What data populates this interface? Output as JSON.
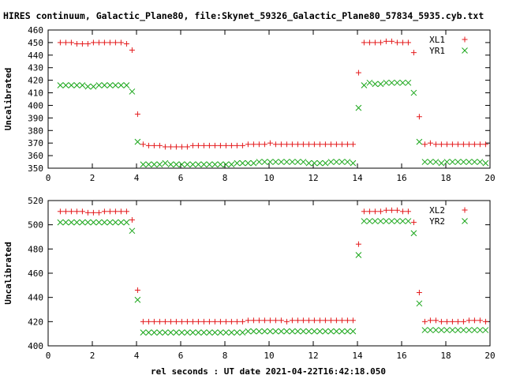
{
  "title": "HIRES continuum, Galactic_Plane80, file:Skynet_59326_Galactic_Plane80_57834_5935.cyb.txt",
  "xlabel": "rel seconds : UT date 2021-04-22T16:42:18.050",
  "colors": {
    "red": "#e41a1c",
    "green": "#1aa61a",
    "axes": "#000000"
  },
  "chart_data": [
    {
      "type": "scatter",
      "ylabel": "Uncalibrated",
      "xlim": [
        0,
        20
      ],
      "ylim": [
        350,
        460
      ],
      "xticks": [
        0,
        2,
        4,
        6,
        8,
        10,
        12,
        14,
        16,
        18,
        20
      ],
      "yticks": [
        350,
        360,
        370,
        380,
        390,
        400,
        410,
        420,
        430,
        440,
        450,
        460
      ],
      "grid": false,
      "legend": "top-right",
      "series": [
        {
          "name": "XL1",
          "marker": "plus",
          "color": "#e41a1c",
          "x": [
            0.55,
            0.8,
            1.05,
            1.3,
            1.55,
            1.8,
            2.05,
            2.3,
            2.55,
            2.8,
            3.05,
            3.3,
            3.55,
            3.8,
            4.05,
            4.3,
            4.55,
            4.8,
            5.05,
            5.3,
            5.55,
            5.8,
            6.05,
            6.3,
            6.55,
            6.8,
            7.05,
            7.3,
            7.55,
            7.8,
            8.05,
            8.3,
            8.55,
            8.8,
            9.05,
            9.3,
            9.55,
            9.8,
            10.05,
            10.3,
            10.55,
            10.8,
            11.05,
            11.3,
            11.55,
            11.8,
            12.05,
            12.3,
            12.55,
            12.8,
            13.05,
            13.3,
            13.55,
            13.8,
            14.05,
            14.3,
            14.55,
            14.8,
            15.05,
            15.3,
            15.55,
            15.8,
            16.05,
            16.3,
            16.55,
            16.8,
            17.05,
            17.3,
            17.55,
            17.8,
            18.05,
            18.3,
            18.55,
            18.8,
            19.05,
            19.3,
            19.55,
            19.8
          ],
          "y": [
            450,
            450,
            450,
            449,
            449,
            449,
            450,
            450,
            450,
            450,
            450,
            450,
            449,
            444,
            393,
            369,
            368,
            368,
            368,
            367,
            367,
            367,
            367,
            367,
            368,
            368,
            368,
            368,
            368,
            368,
            368,
            368,
            368,
            368,
            369,
            369,
            369,
            369,
            370,
            369,
            369,
            369,
            369,
            369,
            369,
            369,
            369,
            369,
            369,
            369,
            369,
            369,
            369,
            369,
            426,
            450,
            450,
            450,
            450,
            451,
            451,
            450,
            450,
            450,
            442,
            391,
            369,
            370,
            369,
            369,
            369,
            369,
            369,
            369,
            369,
            369,
            369,
            369
          ]
        },
        {
          "name": "YR1",
          "marker": "cross",
          "color": "#1aa61a",
          "x": [
            0.55,
            0.8,
            1.05,
            1.3,
            1.55,
            1.8,
            2.05,
            2.3,
            2.55,
            2.8,
            3.05,
            3.3,
            3.55,
            3.8,
            4.05,
            4.3,
            4.55,
            4.8,
            5.05,
            5.3,
            5.55,
            5.8,
            6.05,
            6.3,
            6.55,
            6.8,
            7.05,
            7.3,
            7.55,
            7.8,
            8.05,
            8.3,
            8.55,
            8.8,
            9.05,
            9.3,
            9.55,
            9.8,
            10.05,
            10.3,
            10.55,
            10.8,
            11.05,
            11.3,
            11.55,
            11.8,
            12.05,
            12.3,
            12.55,
            12.8,
            13.05,
            13.3,
            13.55,
            13.8,
            14.05,
            14.3,
            14.55,
            14.8,
            15.05,
            15.3,
            15.55,
            15.8,
            16.05,
            16.3,
            16.55,
            16.8,
            17.05,
            17.3,
            17.55,
            17.8,
            18.05,
            18.3,
            18.55,
            18.8,
            19.05,
            19.3,
            19.55,
            19.8
          ],
          "y": [
            416,
            416,
            416,
            416,
            416,
            415,
            415,
            416,
            416,
            416,
            416,
            416,
            416,
            411,
            371,
            353,
            353,
            353,
            353,
            354,
            353,
            353,
            353,
            353,
            353,
            353,
            353,
            353,
            353,
            353,
            353,
            353,
            354,
            354,
            354,
            354,
            355,
            355,
            355,
            355,
            355,
            355,
            355,
            355,
            355,
            354,
            354,
            354,
            354,
            355,
            355,
            355,
            355,
            354,
            398,
            416,
            418,
            417,
            417,
            418,
            418,
            418,
            418,
            418,
            410,
            371,
            355,
            355,
            355,
            354,
            355,
            355,
            355,
            355,
            355,
            355,
            355,
            354
          ]
        }
      ]
    },
    {
      "type": "scatter",
      "ylabel": "Uncalibrated",
      "xlim": [
        0,
        20
      ],
      "ylim": [
        400,
        520
      ],
      "xticks": [
        0,
        2,
        4,
        6,
        8,
        10,
        12,
        14,
        16,
        18,
        20
      ],
      "yticks": [
        400,
        420,
        440,
        460,
        480,
        500,
        520
      ],
      "grid": false,
      "legend": "top-right",
      "series": [
        {
          "name": "XL2",
          "marker": "plus",
          "color": "#e41a1c",
          "x": [
            0.55,
            0.8,
            1.05,
            1.3,
            1.55,
            1.8,
            2.05,
            2.3,
            2.55,
            2.8,
            3.05,
            3.3,
            3.55,
            3.8,
            4.05,
            4.3,
            4.55,
            4.8,
            5.05,
            5.3,
            5.55,
            5.8,
            6.05,
            6.3,
            6.55,
            6.8,
            7.05,
            7.3,
            7.55,
            7.8,
            8.05,
            8.3,
            8.55,
            8.8,
            9.05,
            9.3,
            9.55,
            9.8,
            10.05,
            10.3,
            10.55,
            10.8,
            11.05,
            11.3,
            11.55,
            11.8,
            12.05,
            12.3,
            12.55,
            12.8,
            13.05,
            13.3,
            13.55,
            13.8,
            14.05,
            14.3,
            14.55,
            14.8,
            15.05,
            15.3,
            15.55,
            15.8,
            16.05,
            16.3,
            16.55,
            16.8,
            17.05,
            17.3,
            17.55,
            17.8,
            18.05,
            18.3,
            18.55,
            18.8,
            19.05,
            19.3,
            19.55,
            19.8
          ],
          "y": [
            511,
            511,
            511,
            511,
            511,
            510,
            510,
            510,
            511,
            511,
            511,
            511,
            511,
            504,
            446,
            420,
            420,
            420,
            420,
            420,
            420,
            420,
            420,
            420,
            420,
            420,
            420,
            420,
            420,
            420,
            420,
            420,
            420,
            420,
            421,
            421,
            421,
            421,
            421,
            421,
            421,
            420,
            421,
            421,
            421,
            421,
            421,
            421,
            421,
            421,
            421,
            421,
            421,
            421,
            484,
            511,
            511,
            511,
            511,
            512,
            512,
            512,
            511,
            511,
            502,
            444,
            420,
            421,
            421,
            420,
            420,
            420,
            420,
            420,
            421,
            421,
            421,
            420
          ]
        },
        {
          "name": "YR2",
          "marker": "cross",
          "color": "#1aa61a",
          "x": [
            0.55,
            0.8,
            1.05,
            1.3,
            1.55,
            1.8,
            2.05,
            2.3,
            2.55,
            2.8,
            3.05,
            3.3,
            3.55,
            3.8,
            4.05,
            4.3,
            4.55,
            4.8,
            5.05,
            5.3,
            5.55,
            5.8,
            6.05,
            6.3,
            6.55,
            6.8,
            7.05,
            7.3,
            7.55,
            7.8,
            8.05,
            8.3,
            8.55,
            8.8,
            9.05,
            9.3,
            9.55,
            9.8,
            10.05,
            10.3,
            10.55,
            10.8,
            11.05,
            11.3,
            11.55,
            11.8,
            12.05,
            12.3,
            12.55,
            12.8,
            13.05,
            13.3,
            13.55,
            13.8,
            14.05,
            14.3,
            14.55,
            14.8,
            15.05,
            15.3,
            15.55,
            15.8,
            16.05,
            16.3,
            16.55,
            16.8,
            17.05,
            17.3,
            17.55,
            17.8,
            18.05,
            18.3,
            18.55,
            18.8,
            19.05,
            19.3,
            19.55,
            19.8
          ],
          "y": [
            502,
            502,
            502,
            502,
            502,
            502,
            502,
            502,
            502,
            502,
            502,
            502,
            502,
            495,
            438,
            411,
            411,
            411,
            411,
            411,
            411,
            411,
            411,
            411,
            411,
            411,
            411,
            411,
            411,
            411,
            411,
            411,
            411,
            411,
            412,
            412,
            412,
            412,
            412,
            412,
            412,
            412,
            412,
            412,
            412,
            412,
            412,
            412,
            412,
            412,
            412,
            412,
            412,
            412,
            475,
            503,
            503,
            503,
            503,
            503,
            503,
            503,
            503,
            503,
            493,
            435,
            413,
            413,
            413,
            413,
            413,
            413,
            413,
            413,
            413,
            413,
            413,
            413
          ]
        }
      ]
    }
  ]
}
